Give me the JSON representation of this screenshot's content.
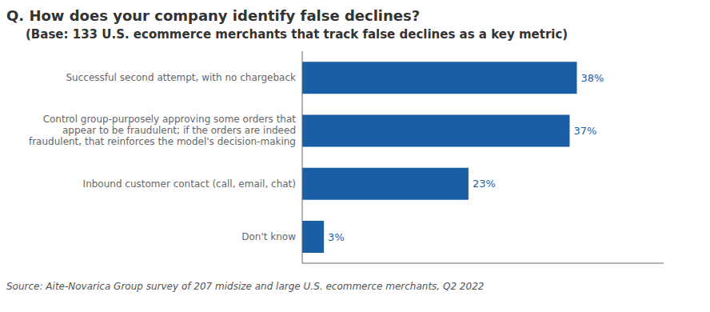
{
  "chart_data": {
    "type": "bar",
    "orientation": "horizontal",
    "title": "Q. How does your company identify false declines?",
    "subtitle": "(Base: 133 U.S. ecommerce merchants that track false declines as a key metric)",
    "annotations": [
      "Source: Aite-Novarica Group survey of 207 midsize and large U.S. ecommerce merchants, Q2 2022"
    ],
    "categories": [
      "Successful second attempt, with no chargeback",
      "Control group-purposely approving some orders that\nappear to be fraudulent; if the orders are indeed\nfraudulent, that reinforces the model's decision-making",
      "Inbound customer contact (call, email, chat)",
      "Don't know"
    ],
    "values": [
      38,
      37,
      23,
      3
    ],
    "value_labels": [
      "38%",
      "37%",
      "23%",
      "3%"
    ],
    "color": "#1a5fa5",
    "xlim": [
      0,
      50
    ],
    "data_labels": true,
    "tick_labels": "y",
    "grid": false
  }
}
